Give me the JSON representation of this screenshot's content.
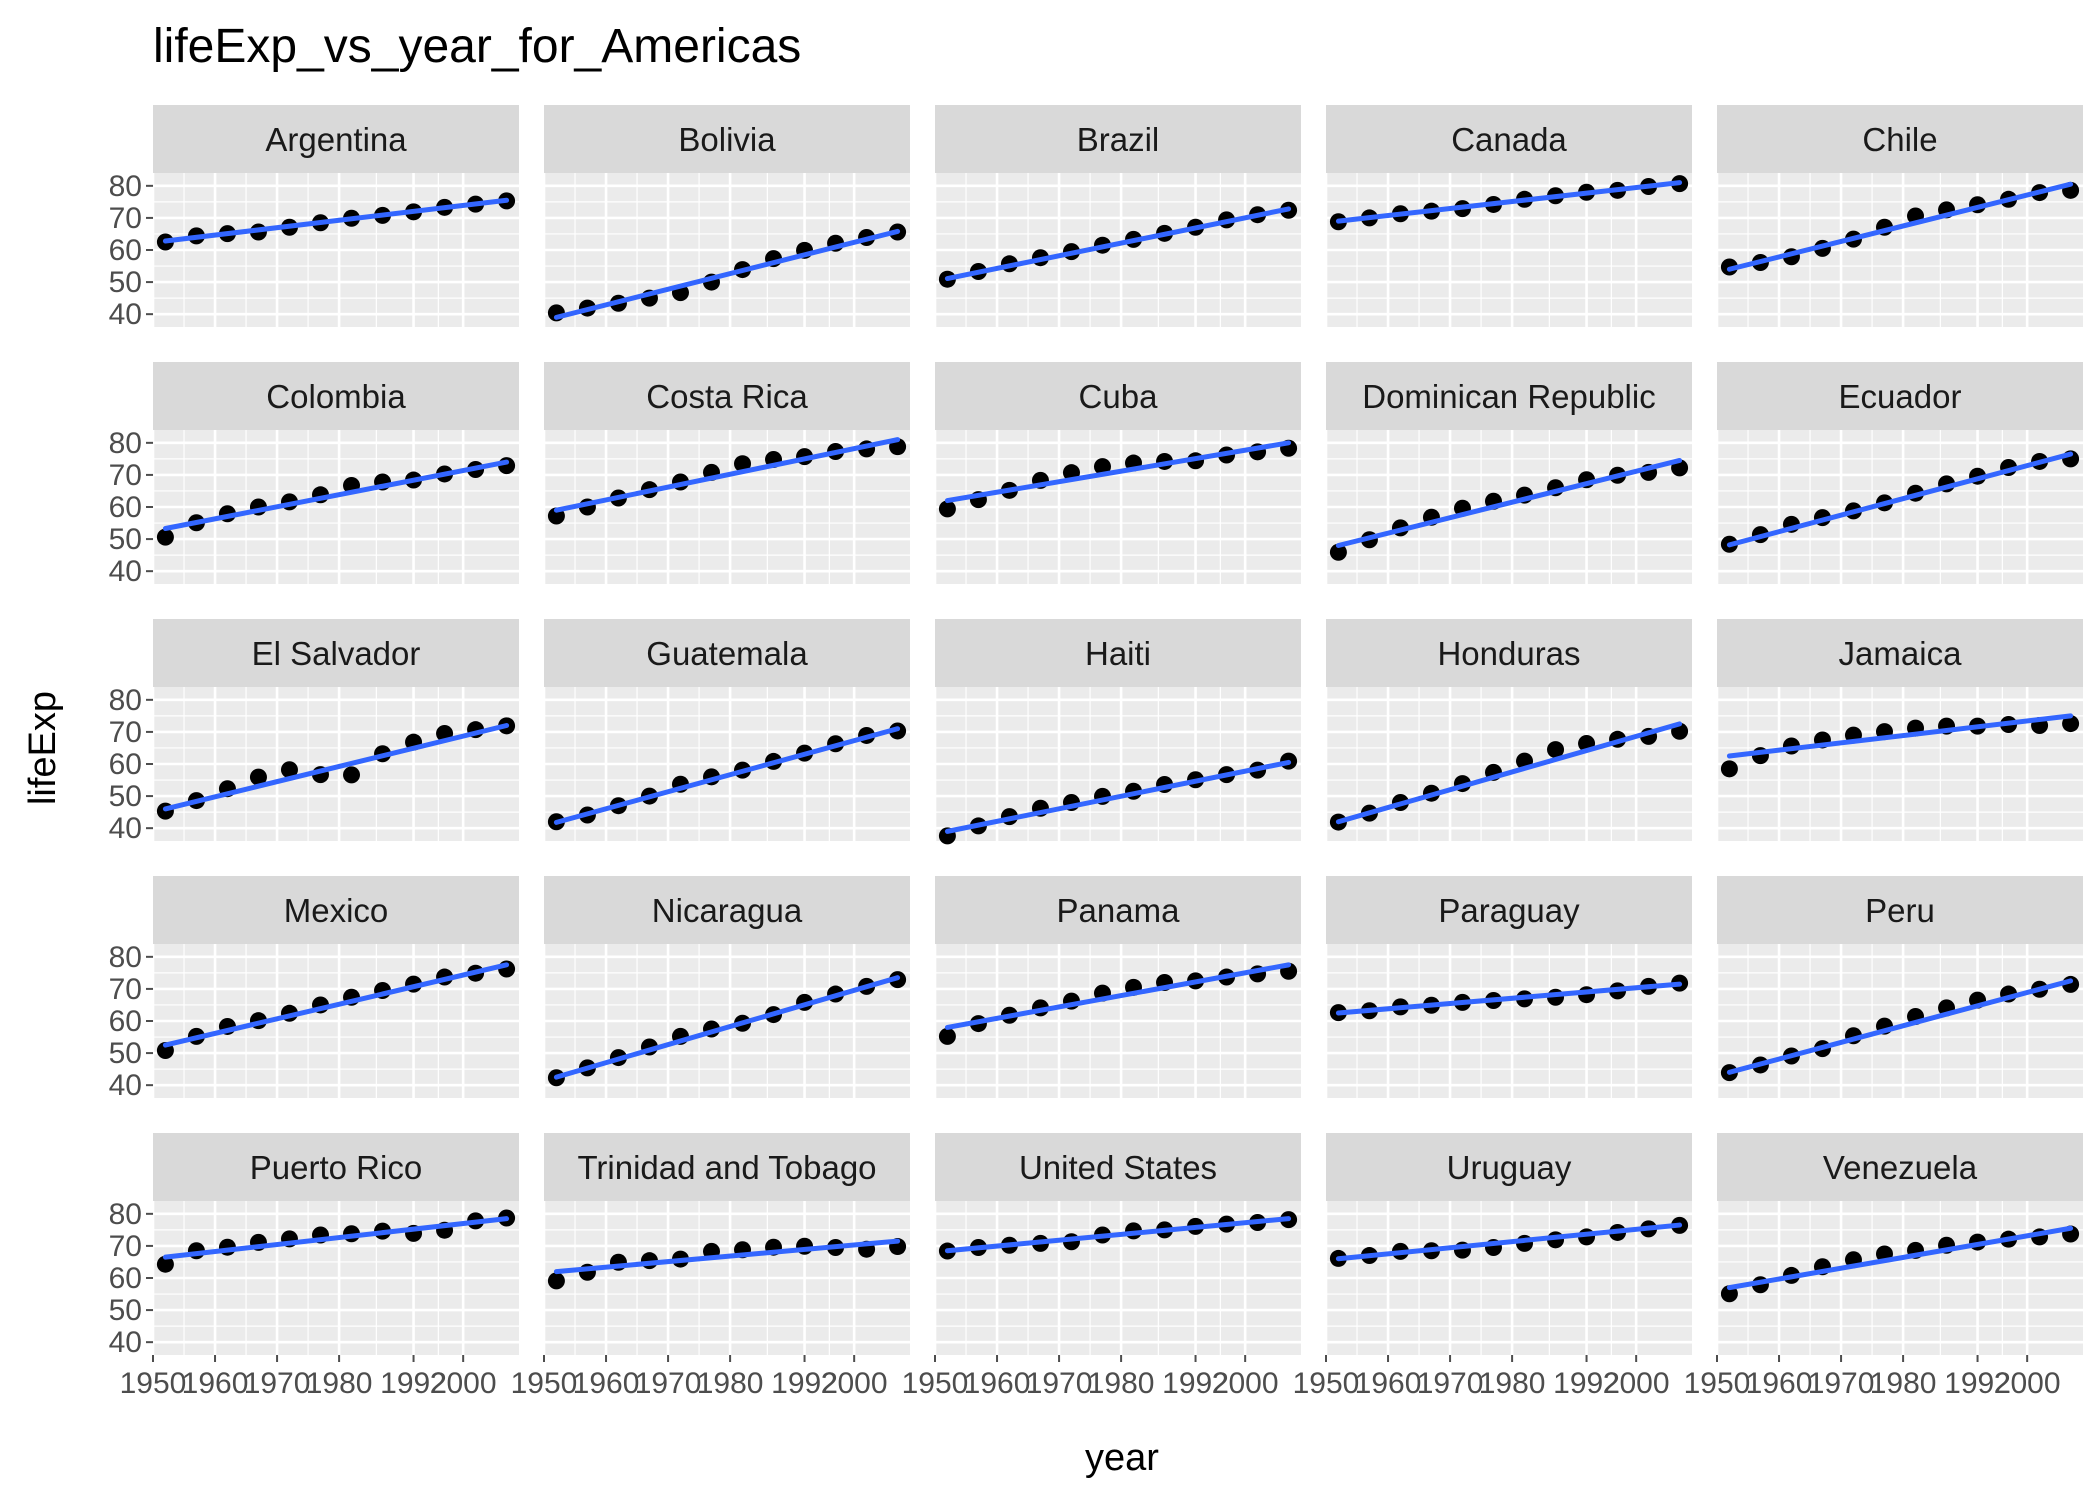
{
  "chart_data": {
    "type": "scatter",
    "title": "lifeExp_vs_year_for_Americas",
    "xlabel": "year",
    "ylabel": "lifeExp",
    "xlim": [
      1950,
      2009
    ],
    "ylim": [
      36,
      84
    ],
    "x_ticks": [
      1950,
      1960,
      1970,
      1980,
      1992,
      2000
    ],
    "x_tick_labels": [
      "1950",
      "1960",
      "1970",
      "1980",
      "1992",
      "2000"
    ],
    "y_ticks": [
      40,
      50,
      60,
      70,
      80
    ],
    "y_tick_labels": [
      "40",
      "50",
      "60",
      "70",
      "80"
    ],
    "grid": true,
    "fit_line_color": "#3366ff",
    "point_color": "#000000",
    "facet_layout": {
      "rows": 5,
      "cols": 5
    },
    "x": [
      1952,
      1957,
      1962,
      1967,
      1972,
      1977,
      1982,
      1987,
      1992,
      1997,
      2002,
      2007
    ],
    "panels": [
      {
        "name": "Argentina",
        "values": [
          62.5,
          64.4,
          65.1,
          65.6,
          67.1,
          68.5,
          69.9,
          70.8,
          71.9,
          73.3,
          74.3,
          75.3
        ],
        "fit": [
          62.8,
          75.5
        ]
      },
      {
        "name": "Bolivia",
        "values": [
          40.4,
          41.9,
          43.4,
          45.0,
          46.7,
          50.0,
          53.9,
          57.3,
          59.9,
          62.1,
          63.9,
          65.6
        ],
        "fit": [
          39.0,
          65.8
        ]
      },
      {
        "name": "Brazil",
        "values": [
          50.9,
          53.3,
          55.7,
          57.6,
          59.5,
          61.5,
          63.3,
          65.2,
          67.1,
          69.4,
          71.0,
          72.4
        ],
        "fit": [
          51.1,
          72.8
        ]
      },
      {
        "name": "Canada",
        "values": [
          68.8,
          70.0,
          71.3,
          72.1,
          72.9,
          74.2,
          75.8,
          76.9,
          78.0,
          78.6,
          79.8,
          80.7
        ],
        "fit": [
          69.0,
          81.0
        ]
      },
      {
        "name": "Chile",
        "values": [
          54.7,
          56.1,
          57.9,
          60.5,
          63.4,
          67.1,
          70.6,
          72.5,
          74.1,
          75.8,
          77.9,
          78.6
        ],
        "fit": [
          54.0,
          80.5
        ]
      },
      {
        "name": "Colombia",
        "values": [
          50.6,
          55.1,
          57.9,
          60.0,
          61.6,
          63.8,
          66.7,
          67.8,
          68.4,
          70.3,
          71.7,
          72.9
        ],
        "fit": [
          53.3,
          74.0
        ]
      },
      {
        "name": "Costa Rica",
        "values": [
          57.2,
          60.0,
          62.8,
          65.4,
          67.8,
          70.8,
          73.5,
          74.8,
          75.7,
          77.3,
          78.1,
          78.8
        ],
        "fit": [
          59.0,
          81.0
        ]
      },
      {
        "name": "Cuba",
        "values": [
          59.4,
          62.3,
          65.2,
          68.3,
          70.7,
          72.6,
          73.7,
          74.2,
          74.4,
          76.2,
          77.2,
          78.3
        ],
        "fit": [
          62.0,
          80.0
        ]
      },
      {
        "name": "Dominican Republic",
        "values": [
          45.9,
          49.8,
          53.5,
          56.8,
          59.6,
          61.8,
          63.7,
          66.0,
          68.5,
          69.9,
          70.8,
          72.2
        ],
        "fit": [
          48.0,
          74.5
        ]
      },
      {
        "name": "Ecuador",
        "values": [
          48.4,
          51.4,
          54.6,
          56.7,
          58.8,
          61.3,
          64.3,
          67.2,
          69.6,
          72.3,
          74.2,
          75.0
        ],
        "fit": [
          48.2,
          76.5
        ]
      },
      {
        "name": "El Salvador",
        "values": [
          45.3,
          48.6,
          52.3,
          55.9,
          58.2,
          56.7,
          56.6,
          63.2,
          66.8,
          69.5,
          70.7,
          71.9
        ],
        "fit": [
          46.0,
          72.0
        ]
      },
      {
        "name": "Guatemala",
        "values": [
          42.0,
          44.1,
          47.0,
          50.0,
          53.7,
          56.0,
          58.1,
          60.8,
          63.4,
          66.3,
          68.9,
          70.3
        ],
        "fit": [
          41.8,
          71.0
        ]
      },
      {
        "name": "Haiti",
        "values": [
          37.6,
          40.7,
          43.6,
          46.2,
          48.0,
          49.9,
          51.5,
          53.6,
          55.1,
          56.7,
          58.1,
          60.9
        ],
        "fit": [
          39.0,
          60.5
        ]
      },
      {
        "name": "Honduras",
        "values": [
          41.9,
          44.7,
          48.0,
          50.9,
          53.9,
          57.4,
          60.9,
          64.5,
          66.4,
          67.7,
          68.6,
          70.2
        ],
        "fit": [
          42.0,
          72.5
        ]
      },
      {
        "name": "Jamaica",
        "values": [
          58.5,
          62.6,
          65.6,
          67.5,
          69.0,
          70.1,
          71.2,
          71.8,
          71.8,
          72.3,
          72.0,
          72.6
        ],
        "fit": [
          62.5,
          75.0
        ]
      },
      {
        "name": "Mexico",
        "values": [
          50.8,
          55.2,
          58.3,
          60.1,
          62.4,
          65.0,
          67.4,
          69.5,
          71.5,
          73.7,
          74.9,
          76.2
        ],
        "fit": [
          52.5,
          77.5
        ]
      },
      {
        "name": "Nicaragua",
        "values": [
          42.3,
          45.4,
          48.6,
          51.9,
          55.2,
          57.5,
          59.3,
          62.0,
          65.8,
          68.4,
          70.8,
          72.9
        ],
        "fit": [
          42.5,
          73.5
        ]
      },
      {
        "name": "Panama",
        "values": [
          55.2,
          59.2,
          61.8,
          64.1,
          66.2,
          68.7,
          70.5,
          72.0,
          72.5,
          73.7,
          74.7,
          75.5
        ],
        "fit": [
          58.0,
          77.5
        ]
      },
      {
        "name": "Paraguay",
        "values": [
          62.6,
          63.2,
          64.4,
          64.9,
          65.8,
          66.4,
          66.9,
          67.4,
          68.2,
          69.4,
          70.8,
          71.8
        ],
        "fit": [
          62.5,
          71.5
        ]
      },
      {
        "name": "Peru",
        "values": [
          43.9,
          46.3,
          49.1,
          51.4,
          55.4,
          58.4,
          61.4,
          64.1,
          66.5,
          68.4,
          69.9,
          71.4
        ],
        "fit": [
          44.0,
          72.5
        ]
      },
      {
        "name": "Puerto Rico",
        "values": [
          64.3,
          68.5,
          69.6,
          71.1,
          72.2,
          73.4,
          73.8,
          74.6,
          73.9,
          74.9,
          77.8,
          78.7
        ],
        "fit": [
          66.5,
          78.5
        ]
      },
      {
        "name": "Trinidad and Tobago",
        "values": [
          59.1,
          61.8,
          64.9,
          65.4,
          65.9,
          68.3,
          68.8,
          69.6,
          69.9,
          69.5,
          68.98,
          69.8
        ],
        "fit": [
          62.0,
          71.5
        ]
      },
      {
        "name": "United States",
        "values": [
          68.4,
          69.5,
          70.2,
          70.8,
          71.3,
          73.4,
          74.7,
          75.0,
          76.1,
          76.8,
          77.3,
          78.2
        ],
        "fit": [
          68.5,
          78.5
        ]
      },
      {
        "name": "Uruguay",
        "values": [
          66.1,
          67.0,
          68.3,
          68.5,
          68.7,
          69.5,
          70.8,
          71.9,
          72.8,
          74.2,
          75.3,
          76.4
        ],
        "fit": [
          66.0,
          76.5
        ]
      },
      {
        "name": "Venezuela",
        "values": [
          55.1,
          57.9,
          60.8,
          63.5,
          65.7,
          67.5,
          68.6,
          70.2,
          71.2,
          72.1,
          72.8,
          73.7
        ],
        "fit": [
          57.0,
          75.5
        ]
      }
    ]
  }
}
